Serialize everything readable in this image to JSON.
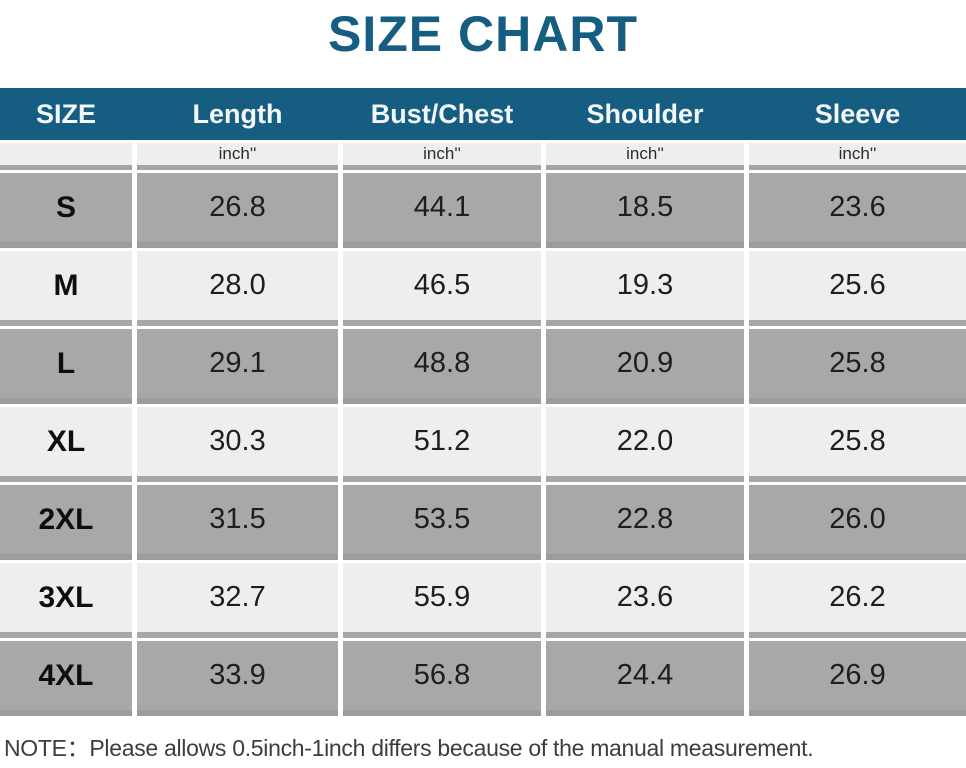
{
  "title": "SIZE CHART",
  "colors": {
    "accent_blue": "#165d82",
    "row_gray": "#a9a8a8",
    "row_light": "#efeeee"
  },
  "chart_data": {
    "type": "table",
    "title": "SIZE CHART",
    "columns": [
      "SIZE",
      "Length",
      "Bust/Chest",
      "Shoulder",
      "Sleeve"
    ],
    "unit_row": [
      "",
      "inch''",
      "inch''",
      "inch''",
      "inch''"
    ],
    "rows": [
      {
        "size": "S",
        "values": [
          "26.8",
          "44.1",
          "18.5",
          "23.6"
        ]
      },
      {
        "size": "M",
        "values": [
          "28.0",
          "46.5",
          "19.3",
          "25.6"
        ]
      },
      {
        "size": "L",
        "values": [
          "29.1",
          "48.8",
          "20.9",
          "25.8"
        ]
      },
      {
        "size": "XL",
        "values": [
          "30.3",
          "51.2",
          "22.0",
          "25.8"
        ]
      },
      {
        "size": "2XL",
        "values": [
          "31.5",
          "53.5",
          "22.8",
          "26.0"
        ]
      },
      {
        "size": "3XL",
        "values": [
          "32.7",
          "55.9",
          "23.6",
          "26.2"
        ]
      },
      {
        "size": "4XL",
        "values": [
          "33.9",
          "56.8",
          "24.4",
          "26.9"
        ]
      }
    ],
    "note": "NOTE：Please allows 0.5inch-1inch differs because of the manual measurement."
  }
}
